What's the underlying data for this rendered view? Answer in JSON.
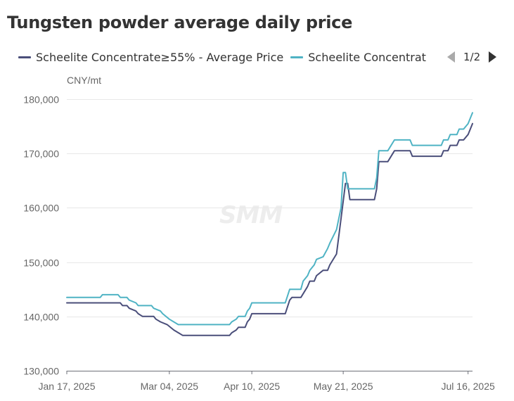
{
  "chart_data": {
    "type": "line",
    "title": "Tungsten powder average daily price",
    "ylabel": "CNY/mt",
    "ylim": [
      130000,
      180000
    ],
    "y_ticks": [
      180000,
      170000,
      160000,
      150000,
      140000,
      130000
    ],
    "y_tick_labels": [
      "180,000",
      "170,000",
      "160,000",
      "150,000",
      "140,000",
      "130,000"
    ],
    "x_tick_labels": [
      {
        "date": "2025-01-17",
        "label": "Jan 17, 2025"
      },
      {
        "date": "2025-03-04",
        "label": "Mar 04, 2025"
      },
      {
        "date": "2025-04-10",
        "label": "Apr 10, 2025"
      },
      {
        "date": "2025-05-21",
        "label": "May 21, 2025"
      },
      {
        "date": "2025-07-16",
        "label": "Jul 16, 2025"
      }
    ],
    "grid": true,
    "legend_position": "top",
    "legend_page": "1/2",
    "watermark": "SMM",
    "series": [
      {
        "name": "Scheelite Concentrate≥55% - Average Price",
        "legend_label": "Scheelite Concentrate≥55% - Average Price",
        "color": "#4a4e7a",
        "points": [
          [
            "2025-01-17",
            142500
          ],
          [
            "2025-02-05",
            142500
          ],
          [
            "2025-02-10",
            142500
          ],
          [
            "2025-02-11",
            142000
          ],
          [
            "2025-02-13",
            142000
          ],
          [
            "2025-02-14",
            141500
          ],
          [
            "2025-02-17",
            141000
          ],
          [
            "2025-02-18",
            140500
          ],
          [
            "2025-02-20",
            140000
          ],
          [
            "2025-02-25",
            140000
          ],
          [
            "2025-02-26",
            139500
          ],
          [
            "2025-02-28",
            139000
          ],
          [
            "2025-03-03",
            138500
          ],
          [
            "2025-03-06",
            137500
          ],
          [
            "2025-03-10",
            136500
          ],
          [
            "2025-03-31",
            136500
          ],
          [
            "2025-04-01",
            137000
          ],
          [
            "2025-04-03",
            137500
          ],
          [
            "2025-04-04",
            138000
          ],
          [
            "2025-04-07",
            138000
          ],
          [
            "2025-04-08",
            139000
          ],
          [
            "2025-04-09",
            139500
          ],
          [
            "2025-04-10",
            140500
          ],
          [
            "2025-04-25",
            140500
          ],
          [
            "2025-04-27",
            143000
          ],
          [
            "2025-04-28",
            143500
          ],
          [
            "2025-05-02",
            143500
          ],
          [
            "2025-05-05",
            145500
          ],
          [
            "2025-05-06",
            146500
          ],
          [
            "2025-05-08",
            146500
          ],
          [
            "2025-05-09",
            147500
          ],
          [
            "2025-05-12",
            148500
          ],
          [
            "2025-05-14",
            148500
          ],
          [
            "2025-05-15",
            149500
          ],
          [
            "2025-05-18",
            151500
          ],
          [
            "2025-05-20",
            158000
          ],
          [
            "2025-05-22",
            164500
          ],
          [
            "2025-05-23",
            164500
          ],
          [
            "2025-05-24",
            161500
          ],
          [
            "2025-06-04",
            161500
          ],
          [
            "2025-06-05",
            163500
          ],
          [
            "2025-06-06",
            168500
          ],
          [
            "2025-06-10",
            168500
          ],
          [
            "2025-06-13",
            170500
          ],
          [
            "2025-06-20",
            170500
          ],
          [
            "2025-06-21",
            169500
          ],
          [
            "2025-07-04",
            169500
          ],
          [
            "2025-07-05",
            170500
          ],
          [
            "2025-07-07",
            170500
          ],
          [
            "2025-07-08",
            171500
          ],
          [
            "2025-07-11",
            171500
          ],
          [
            "2025-07-12",
            172500
          ],
          [
            "2025-07-14",
            172500
          ],
          [
            "2025-07-16",
            173500
          ],
          [
            "2025-07-18",
            175500
          ]
        ]
      },
      {
        "name": "Scheelite Concentrat",
        "legend_label": "Scheelite Concentrat",
        "color": "#4fb3c4",
        "points": [
          [
            "2025-01-17",
            143500
          ],
          [
            "2025-02-01",
            143500
          ],
          [
            "2025-02-02",
            144000
          ],
          [
            "2025-02-09",
            144000
          ],
          [
            "2025-02-10",
            143500
          ],
          [
            "2025-02-13",
            143500
          ],
          [
            "2025-02-14",
            143000
          ],
          [
            "2025-02-17",
            142500
          ],
          [
            "2025-02-18",
            142000
          ],
          [
            "2025-02-24",
            142000
          ],
          [
            "2025-02-25",
            141500
          ],
          [
            "2025-02-28",
            141000
          ],
          [
            "2025-03-01",
            140500
          ],
          [
            "2025-03-04",
            139500
          ],
          [
            "2025-03-08",
            138500
          ],
          [
            "2025-03-31",
            138500
          ],
          [
            "2025-04-01",
            139000
          ],
          [
            "2025-04-03",
            139500
          ],
          [
            "2025-04-04",
            140000
          ],
          [
            "2025-04-07",
            140000
          ],
          [
            "2025-04-08",
            141000
          ],
          [
            "2025-04-09",
            141500
          ],
          [
            "2025-04-10",
            142500
          ],
          [
            "2025-04-25",
            142500
          ],
          [
            "2025-04-27",
            145000
          ],
          [
            "2025-05-02",
            145000
          ],
          [
            "2025-05-03",
            146500
          ],
          [
            "2025-05-05",
            147500
          ],
          [
            "2025-05-06",
            148500
          ],
          [
            "2025-05-08",
            149500
          ],
          [
            "2025-05-09",
            150500
          ],
          [
            "2025-05-12",
            151000
          ],
          [
            "2025-05-14",
            152500
          ],
          [
            "2025-05-15",
            153500
          ],
          [
            "2025-05-18",
            156000
          ],
          [
            "2025-05-20",
            160000
          ],
          [
            "2025-05-21",
            166500
          ],
          [
            "2025-05-22",
            166500
          ],
          [
            "2025-05-23",
            163500
          ],
          [
            "2025-06-04",
            163500
          ],
          [
            "2025-06-05",
            165500
          ],
          [
            "2025-06-06",
            170500
          ],
          [
            "2025-06-10",
            170500
          ],
          [
            "2025-06-13",
            172500
          ],
          [
            "2025-06-20",
            172500
          ],
          [
            "2025-06-21",
            171500
          ],
          [
            "2025-07-04",
            171500
          ],
          [
            "2025-07-05",
            172500
          ],
          [
            "2025-07-07",
            172500
          ],
          [
            "2025-07-08",
            173500
          ],
          [
            "2025-07-11",
            173500
          ],
          [
            "2025-07-12",
            174500
          ],
          [
            "2025-07-14",
            174500
          ],
          [
            "2025-07-16",
            175500
          ],
          [
            "2025-07-18",
            177500
          ]
        ]
      }
    ]
  }
}
